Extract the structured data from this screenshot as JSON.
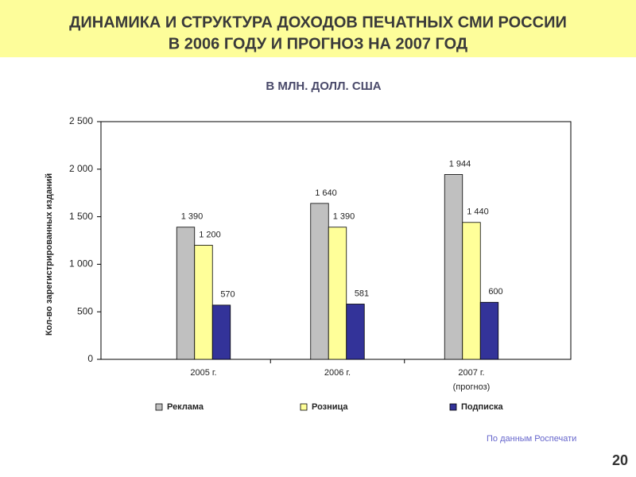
{
  "chart_data": {
    "type": "bar",
    "title_lines": [
      "ДИНАМИКА И СТРУКТУРА ДОХОДОВ ПЕЧАТНЫХ СМИ РОССИИ",
      "В 2006 ГОДУ И ПРОГНОЗ НА 2007 ГОД"
    ],
    "subtitle": "В МЛН. ДОЛЛ. США",
    "y_label": "Кол-во зарегистрированных изданий",
    "categories": [
      "2005 г.",
      "2006 г.",
      "2007 г."
    ],
    "annotation": "(прогноз)",
    "series": [
      {
        "name": "Реклама",
        "color": "#c0c0c0",
        "values": [
          1390,
          1640,
          1944
        ],
        "value_labels": [
          "1 390",
          "1 640",
          "1 944"
        ]
      },
      {
        "name": "Розница",
        "color": "#ffff99",
        "values": [
          1200,
          1390,
          1440
        ],
        "value_labels": [
          "1 200",
          "1 390",
          "1 440"
        ]
      },
      {
        "name": "Подписка",
        "color": "#333399",
        "values": [
          570,
          581,
          600
        ]
      }
    ],
    "ylim": [
      0,
      2500
    ],
    "yticks": [
      0,
      500,
      {
        "value": 1000,
        "label": "1 000"
      },
      {
        "value": 1500,
        "label": "1 500"
      },
      {
        "value": 2000,
        "label": "2 000"
      },
      {
        "value": 2500,
        "label": "2 500"
      }
    ],
    "legend": "bottom",
    "source": "По данным Роспечати",
    "page_number": "20"
  }
}
